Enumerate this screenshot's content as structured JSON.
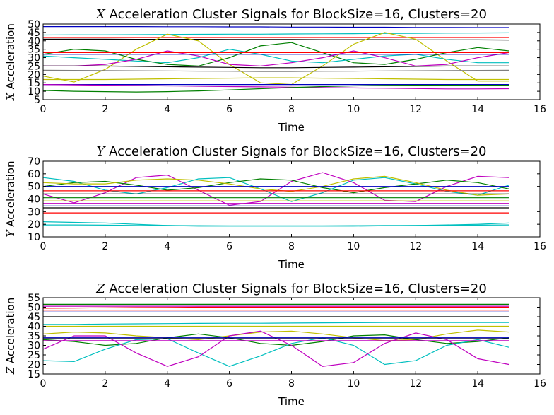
{
  "chart_data": [
    {
      "type": "line",
      "title_var": "X",
      "title_rest": " Acceleration Cluster Signals for BlockSize=16, Clusters=20",
      "xlabel": "Time",
      "ylabel_var": "X",
      "ylabel_rest": " Acceleration",
      "xlim": [
        0,
        16
      ],
      "ylim": [
        5,
        50
      ],
      "xticks": [
        0,
        2,
        4,
        6,
        8,
        10,
        12,
        14,
        16
      ],
      "yticks": [
        5,
        10,
        15,
        20,
        25,
        30,
        35,
        40,
        45,
        50
      ],
      "x": [
        0,
        1,
        2,
        3,
        4,
        5,
        6,
        7,
        8,
        9,
        10,
        11,
        12,
        13,
        14,
        15
      ],
      "series": [
        {
          "color": "#0000bf",
          "values": [
            48.5,
            48.5,
            48.5,
            48.5,
            48.4,
            48.4,
            48.3,
            48.3,
            48.2,
            48.2,
            48.1,
            48.1,
            48,
            48,
            47.9,
            47.9
          ]
        },
        {
          "color": "#00bfbf",
          "values": [
            43.5,
            43.6,
            43.6,
            43.7,
            43.8,
            43.9,
            44,
            44,
            44.1,
            44.2,
            44.3,
            44.4,
            44.5,
            44.6,
            44.7,
            44.8
          ]
        },
        {
          "color": "#ff0000",
          "values": [
            42,
            42,
            42,
            42,
            42,
            42,
            42,
            42,
            42,
            42,
            42,
            42,
            42,
            42,
            42,
            42
          ]
        },
        {
          "color": "#000000",
          "values": [
            41,
            41,
            41,
            40.9,
            40.9,
            40.9,
            40.8,
            40.8,
            40.8,
            40.7,
            40.7,
            40.7,
            40.6,
            40.6,
            40.6,
            40.5
          ]
        },
        {
          "color": "#bfbf00",
          "values": [
            19,
            15.5,
            23,
            35,
            44,
            40,
            26,
            15,
            14,
            25,
            38,
            45,
            41,
            28,
            16,
            16
          ]
        },
        {
          "color": "#007f00",
          "values": [
            32,
            35,
            34,
            29,
            26,
            25,
            30,
            37,
            39,
            33,
            27,
            26,
            29,
            33,
            36,
            34
          ]
        },
        {
          "color": "#00bfbf",
          "values": [
            31,
            30,
            29,
            28,
            27,
            30,
            35,
            32,
            28,
            27,
            29,
            31,
            32,
            29,
            27,
            27
          ]
        },
        {
          "color": "#bf00bf",
          "values": [
            25,
            25,
            26,
            29,
            34,
            31,
            26,
            25,
            27,
            30,
            34,
            30,
            25,
            26,
            30,
            33
          ]
        },
        {
          "color": "#ff0000",
          "values": [
            33,
            33,
            33,
            33,
            33,
            33,
            33,
            33,
            33,
            33,
            33,
            33,
            33,
            33,
            33,
            33
          ]
        },
        {
          "color": "#0000bf",
          "values": [
            32,
            32,
            32,
            32,
            32,
            32,
            32,
            32,
            32,
            32,
            32,
            32,
            32,
            32,
            32,
            32
          ]
        },
        {
          "color": "#000000",
          "values": [
            25,
            25,
            25,
            24.8,
            24.6,
            24.4,
            24.2,
            24,
            24,
            24.2,
            24.4,
            24.6,
            24.8,
            25,
            25,
            25
          ]
        },
        {
          "color": "#7f7f7f",
          "values": [
            22.5,
            22.4,
            22.3,
            22.2,
            22.1,
            22,
            21.9,
            21.8,
            21.8,
            21.9,
            22,
            22.1,
            22.2,
            22.3,
            22.4,
            22.5
          ]
        },
        {
          "color": "#bfbf00",
          "values": [
            17,
            17,
            17,
            17.2,
            17.4,
            17.6,
            17.8,
            18,
            18,
            17.8,
            17.6,
            17.4,
            17.2,
            17,
            17,
            17
          ]
        },
        {
          "color": "#0000bf",
          "values": [
            14,
            14,
            14,
            14,
            14,
            14,
            14,
            14,
            14,
            14,
            14,
            14,
            14,
            14,
            14,
            14
          ]
        },
        {
          "color": "#bf00bf",
          "values": [
            14,
            13.8,
            13.6,
            13.4,
            13.2,
            13,
            12.8,
            12.6,
            12.4,
            12.2,
            12,
            11.8,
            11.6,
            11.4,
            11.4,
            11.5
          ]
        },
        {
          "color": "#007f00",
          "values": [
            10.5,
            10,
            9.8,
            9.6,
            9.8,
            10.2,
            10.8,
            11.5,
            12.2,
            12.8,
            13.2,
            13.5,
            13.6,
            13.6,
            13.6,
            13.6
          ]
        }
      ]
    },
    {
      "type": "line",
      "title_var": "Y",
      "title_rest": " Acceleration Cluster Signals for BlockSize=16, Clusters=20",
      "xlabel": "Time",
      "ylabel_var": "Y",
      "ylabel_rest": " Acceleration",
      "xlim": [
        0,
        16
      ],
      "ylim": [
        10,
        70
      ],
      "xticks": [
        0,
        2,
        4,
        6,
        8,
        10,
        12,
        14,
        16
      ],
      "yticks": [
        10,
        20,
        30,
        40,
        50,
        60,
        70
      ],
      "x": [
        0,
        1,
        2,
        3,
        4,
        5,
        6,
        7,
        8,
        9,
        10,
        11,
        12,
        13,
        14,
        15
      ],
      "series": [
        {
          "color": "#00bfbf",
          "values": [
            57,
            54,
            47,
            44,
            49,
            56,
            57,
            48,
            38,
            45,
            55,
            57,
            52,
            46,
            43,
            51
          ]
        },
        {
          "color": "#bf00bf",
          "values": [
            44,
            37,
            45,
            57,
            59,
            47,
            35,
            38,
            54,
            61,
            53,
            39,
            38,
            50,
            58,
            57
          ]
        },
        {
          "color": "#007f00",
          "values": [
            50,
            53,
            54,
            51,
            47,
            49,
            53,
            56,
            55,
            49,
            45,
            49,
            52,
            55,
            53,
            48
          ]
        },
        {
          "color": "#bfbf00",
          "values": [
            53,
            52,
            52,
            55,
            56,
            55,
            52,
            48,
            46,
            50,
            56,
            58,
            53,
            47,
            43,
            44
          ]
        },
        {
          "color": "#0000bf",
          "values": [
            50,
            50,
            50,
            50,
            50,
            50,
            50,
            50,
            50,
            50,
            50,
            50,
            50,
            50,
            50,
            50
          ]
        },
        {
          "color": "#ff0000",
          "values": [
            46.5,
            46.5,
            46.5,
            46.5,
            46.5,
            46.5,
            46.5,
            46.5,
            46.5,
            46.5,
            46.5,
            46.5,
            46.5,
            46.5,
            46.5,
            46.5
          ]
        },
        {
          "color": "#000000",
          "values": [
            44,
            44,
            44,
            44,
            44,
            44,
            44,
            44,
            44,
            44,
            44,
            44,
            44,
            44,
            44,
            44
          ]
        },
        {
          "color": "#007f00",
          "values": [
            41,
            41,
            41,
            41,
            41,
            41,
            41,
            41,
            41,
            41,
            41,
            41,
            41,
            41,
            41,
            41
          ]
        },
        {
          "color": "#bfbf00",
          "values": [
            38.5,
            38.5,
            38.5,
            38.5,
            38.5,
            38.5,
            38.5,
            38.5,
            38.5,
            38.5,
            38.5,
            38.5,
            38.5,
            38.5,
            38.5,
            38.5
          ]
        },
        {
          "color": "#bf00bf",
          "values": [
            36.5,
            36.5,
            36.5,
            36.5,
            36.5,
            36.5,
            36.5,
            36.5,
            36.5,
            36.5,
            36.5,
            36.5,
            36.5,
            36.5,
            36.5,
            36.5
          ]
        },
        {
          "color": "#0000bf",
          "values": [
            34.5,
            34.5,
            34.5,
            34.5,
            34.5,
            34.5,
            34.5,
            34.5,
            34.5,
            34.5,
            34.5,
            34.5,
            34.5,
            34.5,
            34.5,
            34.5
          ]
        },
        {
          "color": "#000000",
          "values": [
            33,
            33,
            33,
            33,
            33,
            33,
            33,
            33,
            33,
            33,
            33,
            33,
            33,
            33,
            33,
            33
          ]
        },
        {
          "color": "#ff0000",
          "values": [
            29,
            29,
            29,
            29,
            29,
            29,
            29,
            29,
            29,
            29,
            29,
            29,
            29,
            29,
            29,
            29
          ]
        },
        {
          "color": "#00bfbf",
          "values": [
            22,
            21.5,
            21,
            20,
            19,
            18.5,
            18.5,
            18.5,
            18.5,
            18.5,
            18.5,
            18.8,
            19,
            19.5,
            20,
            21
          ]
        },
        {
          "color": "#00bfbf",
          "values": [
            19.5,
            19.5,
            19.3,
            19.1,
            19,
            18.9,
            18.8,
            18.8,
            18.8,
            18.8,
            18.9,
            19,
            19.1,
            19.2,
            19.3,
            19.5
          ]
        }
      ]
    },
    {
      "type": "line",
      "title_var": "Z",
      "title_rest": " Acceleration Cluster Signals for BlockSize=16, Clusters=20",
      "xlabel": "Time",
      "ylabel_var": "Z",
      "ylabel_rest": " Acceleration",
      "xlim": [
        0,
        16
      ],
      "ylim": [
        15,
        55
      ],
      "xticks": [
        0,
        2,
        4,
        6,
        8,
        10,
        12,
        14,
        16
      ],
      "yticks": [
        15,
        20,
        25,
        30,
        35,
        40,
        45,
        50,
        55
      ],
      "x": [
        0,
        1,
        2,
        3,
        4,
        5,
        6,
        7,
        8,
        9,
        10,
        11,
        12,
        13,
        14,
        15
      ],
      "series": [
        {
          "color": "#007f00",
          "values": [
            51.5,
            51.5,
            51.5,
            51.5,
            51.5,
            51.5,
            51.5,
            51.5,
            51.5,
            51.5,
            51.5,
            51.5,
            51.5,
            51.5,
            51.5,
            51.5
          ]
        },
        {
          "color": "#bf00bf",
          "values": [
            50.5,
            50.5,
            50.5,
            50.5,
            50.5,
            50.5,
            50.5,
            50.5,
            50.5,
            50.5,
            50.5,
            50.5,
            50.5,
            50.5,
            50.5,
            50.5
          ]
        },
        {
          "color": "#ff0000",
          "values": [
            49.5,
            49.6,
            49.7,
            49.8,
            49.9,
            50,
            50,
            50,
            50,
            50,
            50,
            50,
            50,
            50,
            50,
            50
          ]
        },
        {
          "color": "#ff0000",
          "values": [
            48.5,
            48.5,
            48.5,
            48.5,
            48.5,
            48.5,
            48.5,
            48.5,
            48.5,
            48.5,
            48.5,
            48.5,
            48.5,
            48.5,
            48.5,
            48.5
          ]
        },
        {
          "color": "#0000bf",
          "values": [
            47.5,
            47.5,
            47.5,
            47.5,
            47.5,
            47.5,
            47.5,
            47.5,
            47.5,
            47.5,
            47.5,
            47.5,
            47.5,
            47.5,
            47.5,
            47.5
          ]
        },
        {
          "color": "#000000",
          "values": [
            45,
            45,
            45,
            45,
            45,
            45,
            45,
            45,
            45,
            45,
            45,
            45,
            45,
            45,
            45,
            45
          ]
        },
        {
          "color": "#00bfbf",
          "values": [
            41,
            41,
            41.2,
            41.3,
            41.4,
            41.5,
            41.6,
            41.6,
            41.7,
            41.8,
            41.9,
            42,
            42,
            42,
            42,
            42
          ]
        },
        {
          "color": "#bfbf00",
          "values": [
            40,
            40,
            40,
            40,
            40,
            40,
            40,
            40,
            40,
            40,
            40,
            40,
            40,
            40,
            40,
            40
          ]
        },
        {
          "color": "#bfbf00",
          "values": [
            36,
            37,
            36.5,
            35,
            34,
            33,
            35,
            37,
            37.5,
            36,
            34,
            32.5,
            33,
            36,
            38,
            37
          ]
        },
        {
          "color": "#007f00",
          "values": [
            33,
            32,
            30,
            31,
            34,
            36,
            34,
            31,
            30,
            32,
            35,
            35.5,
            33,
            31,
            32,
            34
          ]
        },
        {
          "color": "#00bfbf",
          "values": [
            22,
            21.5,
            28,
            33,
            33.5,
            26,
            19,
            24.5,
            31,
            34,
            30,
            20,
            22,
            30,
            33,
            29
          ]
        },
        {
          "color": "#bf00bf",
          "values": [
            28,
            35,
            35,
            26,
            19,
            24,
            35,
            37.5,
            30,
            19,
            21,
            31,
            36.5,
            33,
            23,
            20
          ]
        },
        {
          "color": "#0000bf",
          "values": [
            34,
            34,
            34,
            34,
            34,
            34,
            34,
            34,
            34,
            34,
            34,
            34,
            34,
            34,
            34,
            34
          ]
        },
        {
          "color": "#000000",
          "values": [
            33.5,
            33.5,
            33.5,
            33.5,
            33.5,
            33.5,
            33.5,
            33.5,
            33.5,
            33.5,
            33.5,
            33.5,
            33.5,
            33.5,
            33.5,
            33.5
          ]
        },
        {
          "color": "#bf00bf",
          "values": [
            32.5,
            32.5,
            32.5,
            32.5,
            32.5,
            32.5,
            32.5,
            32.5,
            32.5,
            32.5,
            32.5,
            32.5,
            32.5,
            32.5,
            32.5,
            32.5
          ]
        }
      ]
    }
  ]
}
